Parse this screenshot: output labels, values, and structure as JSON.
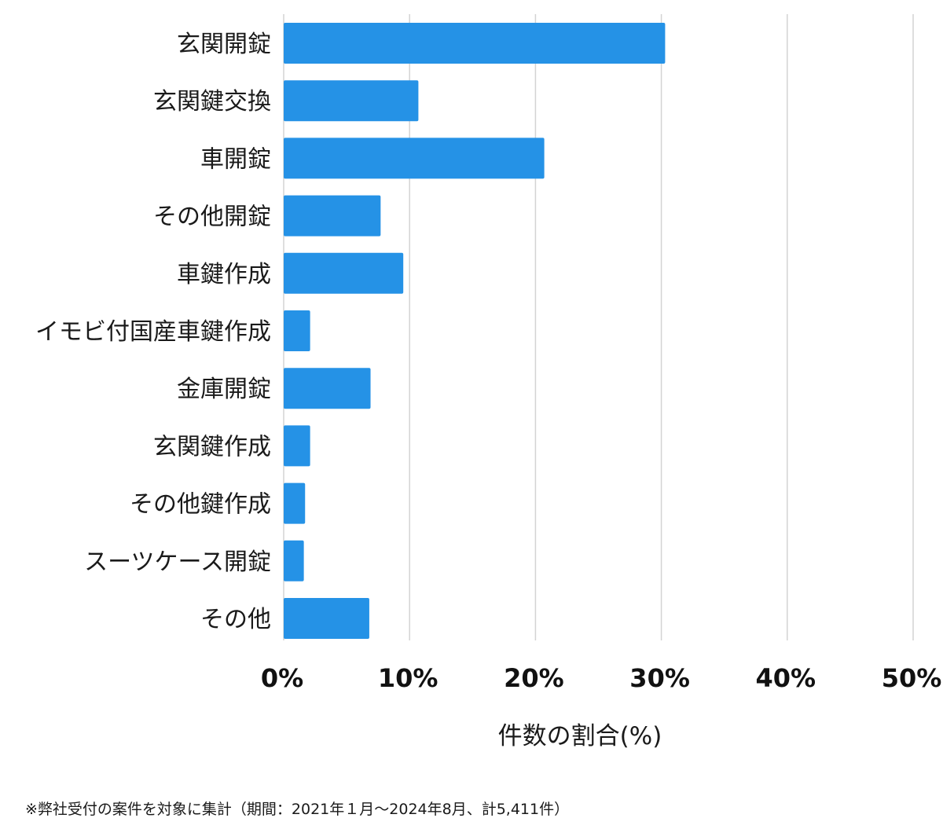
{
  "chart_data": {
    "type": "bar",
    "orientation": "horizontal",
    "categories": [
      "玄関開錠",
      "玄関鍵交換",
      "車開錠",
      "その他開錠",
      "車鍵作成",
      "イモビ付国産車鍵作成",
      "金庫開錠",
      "玄関鍵作成",
      "その他鍵作成",
      "スーツケース開錠",
      "その他"
    ],
    "values": [
      30.3,
      10.7,
      20.7,
      7.7,
      9.5,
      2.1,
      6.9,
      2.1,
      1.7,
      1.6,
      6.8
    ],
    "xlabel": "件数の割合(%)",
    "ylabel": "",
    "xlim": [
      0,
      50
    ],
    "ticks": [
      0,
      10,
      20,
      30,
      40,
      50
    ],
    "tick_labels": [
      "0%",
      "10%",
      "20%",
      "30%",
      "40%",
      "50%"
    ],
    "grid": "vertical",
    "bar_color": "#2592e6",
    "grid_color": "#d3d3d3"
  },
  "footnote": "※弊社受付の案件を対象に集計（期間：2021年１月〜2024年8月、計5,411件）"
}
